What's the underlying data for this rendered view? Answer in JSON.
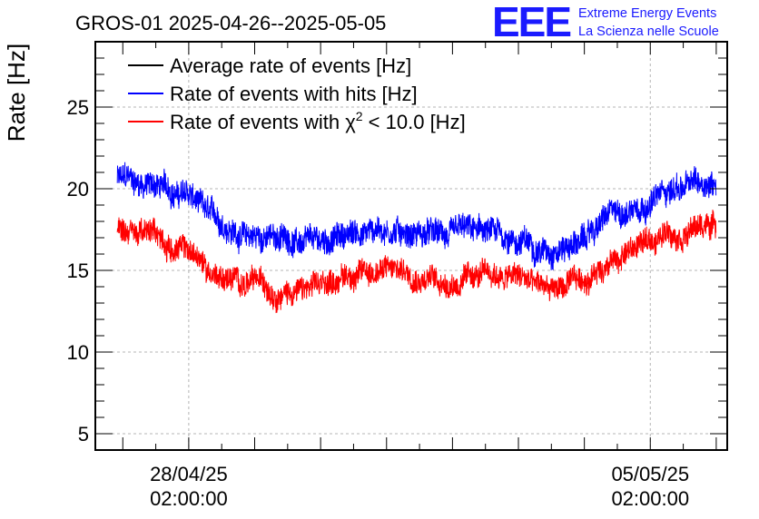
{
  "header": {
    "title": "GROS-01 2025-04-26--2025-05-05",
    "logo_letters": "EEE",
    "logo_line1": "Extreme Energy Events",
    "logo_line2": "La Scienza nelle Scuole"
  },
  "chart_data": {
    "type": "line",
    "ylabel": "Rate [Hz]",
    "ylim": [
      4,
      29
    ],
    "xlim": [
      "2025-04-26T16:00:00",
      "2025-05-06T06:00:00"
    ],
    "grid": true,
    "yticks": [
      {
        "value": 5,
        "label": "5"
      },
      {
        "value": 10,
        "label": "10"
      },
      {
        "value": 15,
        "label": "15"
      },
      {
        "value": 20,
        "label": "20"
      },
      {
        "value": 25,
        "label": "25"
      }
    ],
    "xticks": [
      {
        "value": "2025-04-28T02:00:00",
        "line1": "28/04/25",
        "line2": "02:00:00"
      },
      {
        "value": "2025-05-05T02:00:00",
        "line1": "05/05/25",
        "line2": "02:00:00"
      }
    ],
    "legend": {
      "placement": "top-left",
      "entries": [
        {
          "label": "Average rate of events [Hz]",
          "color": "#000000"
        },
        {
          "label_pre": "Rate of events with hits [Hz]",
          "color": "#0000ff"
        },
        {
          "label_pre": "Rate of events with χ",
          "label_sup": "2",
          "label_post": " < 10.0 [Hz]",
          "color": "#ff0000"
        }
      ]
    },
    "series": [
      {
        "name": "Rate of events with hits [Hz]",
        "color": "#0000ff",
        "noise": 0.75,
        "x": [
          "2025-04-27T00:00:00",
          "2025-04-27T12:00:00",
          "2025-04-28T00:00:00",
          "2025-04-28T12:00:00",
          "2025-04-29T00:00:00",
          "2025-04-29T12:00:00",
          "2025-04-30T00:00:00",
          "2025-04-30T12:00:00",
          "2025-05-01T00:00:00",
          "2025-05-01T12:00:00",
          "2025-05-02T00:00:00",
          "2025-05-02T12:00:00",
          "2025-05-03T00:00:00",
          "2025-05-03T12:00:00",
          "2025-05-04T00:00:00",
          "2025-05-04T12:00:00",
          "2025-05-05T00:00:00",
          "2025-05-05T12:00:00",
          "2025-05-06T02:00:00"
        ],
        "values": [
          20.6,
          20.3,
          19.7,
          18.0,
          17.1,
          17.0,
          16.5,
          17.2,
          17.6,
          17.4,
          17.0,
          17.2,
          16.9,
          16.4,
          16.8,
          18.3,
          19.3,
          20.1,
          20.4
        ]
      },
      {
        "name": "Rate of events with χ2 < 10.0 [Hz]",
        "color": "#ff0000",
        "noise": 0.7,
        "x": [
          "2025-04-27T00:00:00",
          "2025-04-27T12:00:00",
          "2025-04-28T00:00:00",
          "2025-04-28T12:00:00",
          "2025-04-29T00:00:00",
          "2025-04-29T12:00:00",
          "2025-04-30T00:00:00",
          "2025-04-30T12:00:00",
          "2025-05-01T00:00:00",
          "2025-05-01T12:00:00",
          "2025-05-02T00:00:00",
          "2025-05-02T12:00:00",
          "2025-05-03T00:00:00",
          "2025-05-03T12:00:00",
          "2025-05-04T00:00:00",
          "2025-05-04T12:00:00",
          "2025-05-05T00:00:00",
          "2025-05-05T12:00:00",
          "2025-05-06T02:00:00"
        ],
        "values": [
          17.7,
          17.2,
          16.3,
          14.8,
          14.2,
          13.9,
          13.8,
          14.8,
          15.1,
          15.0,
          14.3,
          14.6,
          14.6,
          13.9,
          14.1,
          15.7,
          16.7,
          17.6,
          17.8
        ]
      }
    ]
  }
}
